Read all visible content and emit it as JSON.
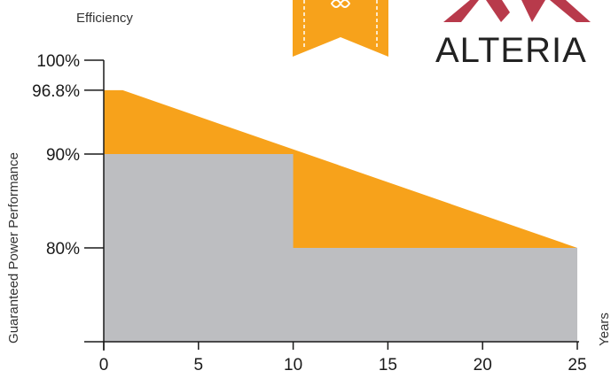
{
  "chart_data": {
    "type": "area",
    "title": "",
    "ylabel": "Guaranteed Power Performance",
    "xlabel": "Years",
    "ylabel_top": "Efficiency",
    "xlim": [
      0,
      25
    ],
    "ylim": [
      75,
      100
    ],
    "x_ticks": [
      0,
      5,
      10,
      15,
      20,
      25
    ],
    "x_tick_labels": [
      "0",
      "5",
      "10",
      "15",
      "20",
      "25"
    ],
    "y_ticks": [
      80,
      90,
      96.8,
      100
    ],
    "y_tick_labels": [
      "80%",
      "90%",
      "96.8%",
      "100%"
    ],
    "grid": false,
    "series": [
      {
        "role": "linear-warranty",
        "color": "#F7A21B",
        "x": [
          0,
          1,
          25
        ],
        "y": [
          96.8,
          96.8,
          80
        ]
      },
      {
        "role": "step-warranty",
        "color": "#BDBEC1",
        "x": [
          0,
          10,
          10,
          25
        ],
        "y": [
          90,
          90,
          80,
          80
        ]
      }
    ]
  },
  "brand": {
    "name": "ALTERIA",
    "logo_color": "#B83A4B",
    "ribbon_color": "#F7A21B"
  }
}
